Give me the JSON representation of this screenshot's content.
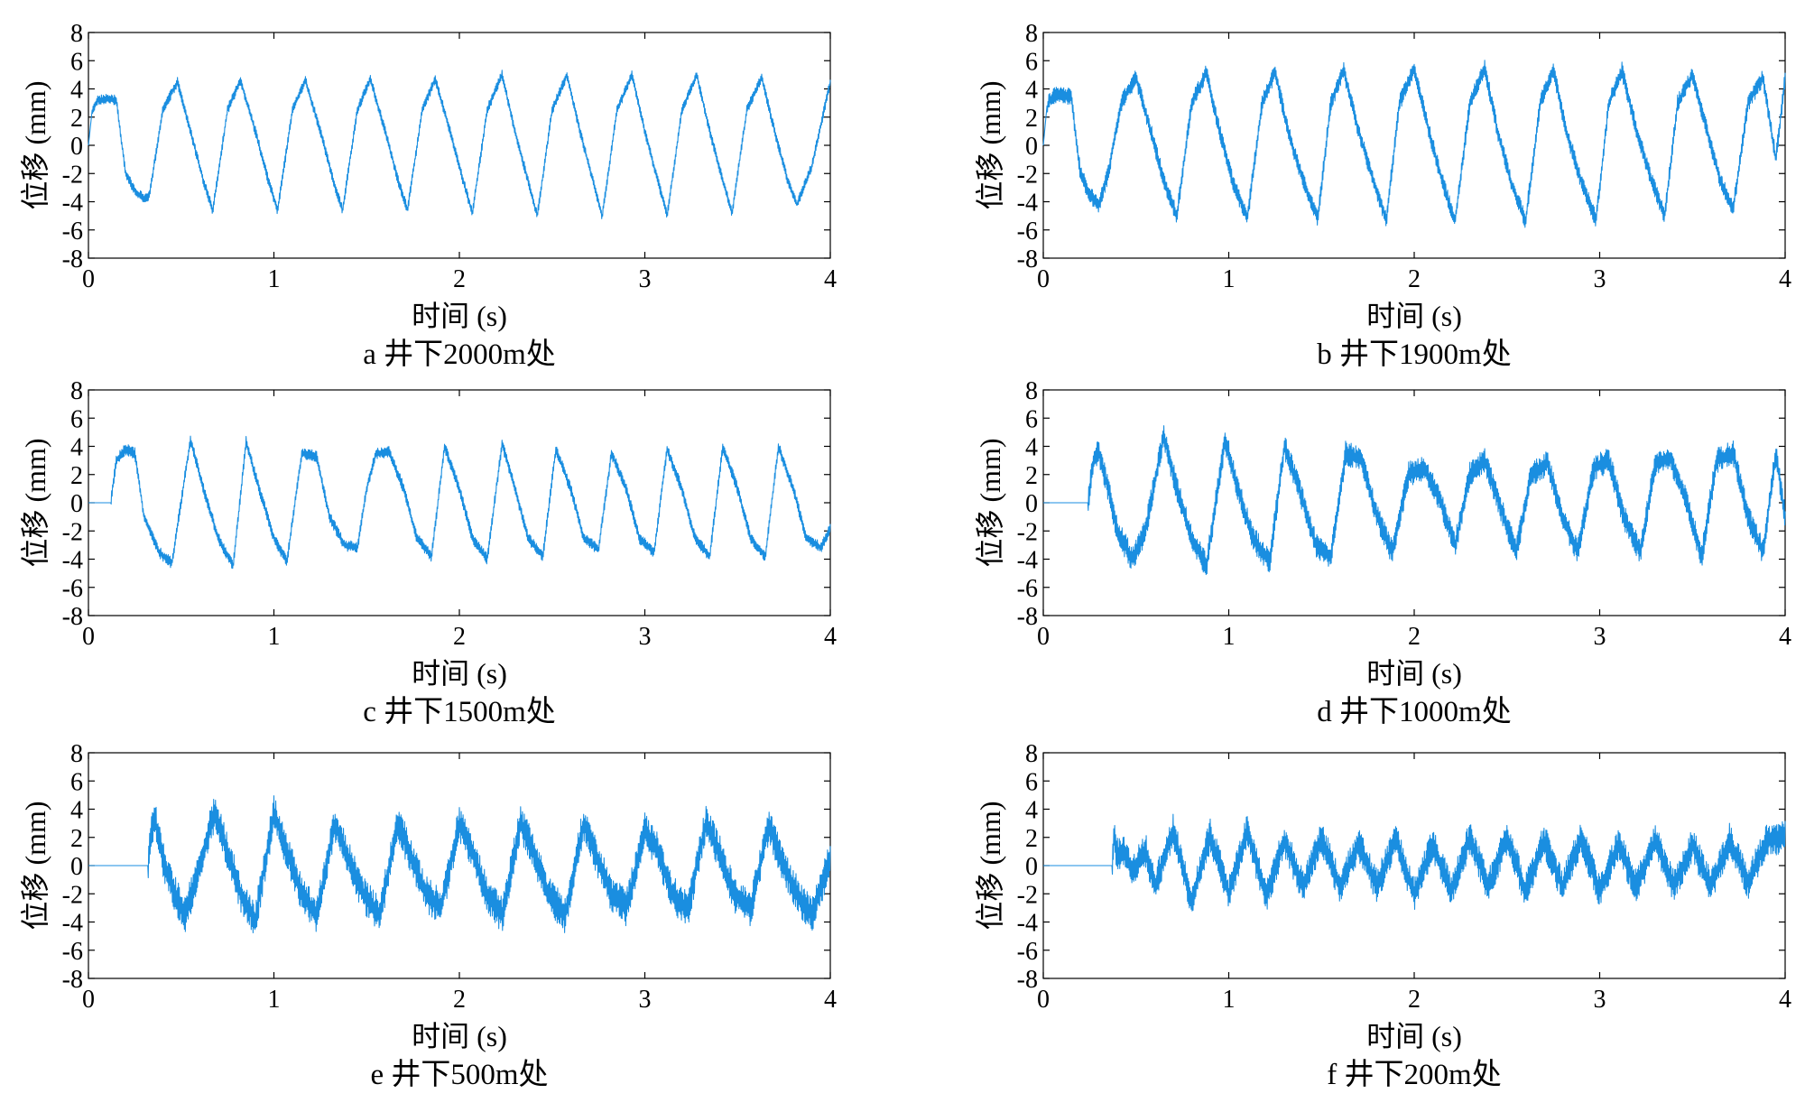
{
  "figure": {
    "line_color": "#1a8ee0"
  },
  "chart_data": [
    {
      "type": "line",
      "panel": "a",
      "caption": "a 井下2000m处",
      "xlabel": "时间 (s)",
      "ylabel": "位移 (mm)",
      "xlim": [
        0,
        4
      ],
      "ylim": [
        -8,
        8
      ],
      "xticks": [
        0,
        1,
        2,
        3,
        4
      ],
      "yticks": [
        -8,
        -6,
        -4,
        -2,
        0,
        2,
        4,
        6,
        8
      ],
      "grid": false,
      "series": [
        {
          "color": "#1a8ee0",
          "x": [
            0,
            0.02,
            0.05,
            0.1,
            0.15,
            0.2,
            0.25,
            0.3,
            0.33,
            0.4,
            0.48,
            0.55,
            0.62,
            0.67,
            0.75,
            0.82,
            0.9,
            0.97,
            1.02,
            1.1,
            1.17,
            1.25,
            1.32,
            1.37,
            1.45,
            1.52,
            1.6,
            1.67,
            1.72,
            1.8,
            1.87,
            1.95,
            2.02,
            2.07,
            2.15,
            2.23,
            2.3,
            2.37,
            2.42,
            2.5,
            2.58,
            2.65,
            2.72,
            2.77,
            2.85,
            2.93,
            3.0,
            3.07,
            3.12,
            3.2,
            3.28,
            3.35,
            3.42,
            3.47,
            3.55,
            3.63,
            3.7,
            3.77,
            3.82,
            3.9,
            4.0
          ],
          "y": [
            0,
            2.5,
            3.2,
            3.3,
            3.2,
            -2.0,
            -3.2,
            -3.8,
            -3.5,
            2.5,
            4.5,
            1.0,
            -2.5,
            -4.6,
            2.5,
            4.6,
            1.0,
            -2.5,
            -4.6,
            2.5,
            4.6,
            1.0,
            -2.5,
            -4.6,
            2.5,
            4.7,
            1.0,
            -2.5,
            -4.6,
            2.5,
            4.7,
            1.0,
            -2.5,
            -4.8,
            2.5,
            5.0,
            1.0,
            -2.5,
            -5.0,
            2.5,
            5.0,
            1.0,
            -2.5,
            -5.0,
            2.5,
            5.0,
            1.0,
            -2.5,
            -5.0,
            2.5,
            5.0,
            1.0,
            -2.5,
            -4.8,
            2.5,
            4.8,
            1.0,
            -2.5,
            -4.2,
            -1.5,
            4.5
          ]
        }
      ]
    },
    {
      "type": "line",
      "panel": "b",
      "caption": "b 井下1900m处",
      "xlabel": "时间 (s)",
      "ylabel": "位移 (mm)",
      "xlim": [
        0,
        4
      ],
      "ylim": [
        -8,
        8
      ],
      "xticks": [
        0,
        1,
        2,
        3,
        4
      ],
      "yticks": [
        -8,
        -6,
        -4,
        -2,
        0,
        2,
        4,
        6,
        8
      ],
      "grid": false,
      "series": [
        {
          "color": "#1a8ee0",
          "x": [
            0,
            0.02,
            0.05,
            0.1,
            0.15,
            0.2,
            0.25,
            0.3,
            0.35,
            0.42,
            0.5,
            0.58,
            0.65,
            0.72,
            0.8,
            0.88,
            0.95,
            1.02,
            1.1,
            1.18,
            1.25,
            1.32,
            1.4,
            1.48,
            1.55,
            1.62,
            1.7,
            1.78,
            1.85,
            1.92,
            2.0,
            2.08,
            2.15,
            2.22,
            2.3,
            2.38,
            2.45,
            2.52,
            2.6,
            2.68,
            2.75,
            2.82,
            2.9,
            2.98,
            3.05,
            3.12,
            3.2,
            3.28,
            3.35,
            3.42,
            3.5,
            3.58,
            3.65,
            3.72,
            3.8,
            3.88,
            3.95,
            4.0
          ],
          "y": [
            0,
            2.8,
            3.5,
            3.6,
            3.4,
            -2.0,
            -3.5,
            -4.2,
            -2.0,
            3.0,
            4.8,
            1.0,
            -2.5,
            -5.0,
            3.0,
            5.2,
            1.0,
            -2.5,
            -5.2,
            3.0,
            5.2,
            1.0,
            -2.5,
            -5.2,
            3.0,
            5.3,
            1.0,
            -2.5,
            -5.3,
            3.0,
            5.4,
            1.0,
            -2.5,
            -5.4,
            3.0,
            5.5,
            1.0,
            -2.5,
            -5.4,
            3.0,
            5.4,
            1.0,
            -2.5,
            -5.3,
            3.0,
            5.3,
            1.0,
            -2.5,
            -5.0,
            3.0,
            5.0,
            1.0,
            -2.5,
            -4.5,
            3.0,
            4.8,
            -1.0,
            4.8
          ]
        }
      ]
    },
    {
      "type": "line",
      "panel": "c",
      "caption": "c 井下1500m处",
      "xlabel": "时间 (s)",
      "ylabel": "位移 (mm)",
      "xlim": [
        0,
        4
      ],
      "ylim": [
        -8,
        8
      ],
      "xticks": [
        0,
        1,
        2,
        3,
        4
      ],
      "yticks": [
        -8,
        -6,
        -4,
        -2,
        0,
        2,
        4,
        6,
        8
      ],
      "grid": false,
      "series": [
        {
          "color": "#1a8ee0",
          "x": [
            0,
            0.12,
            0.15,
            0.2,
            0.25,
            0.3,
            0.38,
            0.45,
            0.55,
            0.62,
            0.7,
            0.78,
            0.85,
            0.92,
            1.0,
            1.07,
            1.15,
            1.23,
            1.3,
            1.38,
            1.45,
            1.5,
            1.55,
            1.62,
            1.7,
            1.77,
            1.85,
            1.92,
            2.0,
            2.07,
            2.15,
            2.23,
            2.3,
            2.37,
            2.45,
            2.52,
            2.6,
            2.67,
            2.75,
            2.82,
            2.9,
            2.97,
            3.05,
            3.12,
            3.2,
            3.27,
            3.35,
            3.42,
            3.5,
            3.57,
            3.65,
            3.72,
            3.8,
            3.87,
            3.95,
            4.0
          ],
          "y": [
            0,
            0,
            3.0,
            3.8,
            3.5,
            -1.0,
            -3.5,
            -4.3,
            4.5,
            1.0,
            -2.5,
            -4.5,
            4.3,
            1.0,
            -2.5,
            -4.2,
            3.5,
            3.3,
            -1.0,
            -3.0,
            -3.2,
            1.0,
            3.5,
            3.6,
            1.0,
            -2.5,
            -3.8,
            4.0,
            1.0,
            -2.5,
            -4.0,
            4.2,
            1.0,
            -2.5,
            -3.8,
            3.8,
            1.0,
            -2.5,
            -3.3,
            3.5,
            1.0,
            -2.5,
            -3.5,
            3.8,
            1.0,
            -2.5,
            -3.8,
            4.0,
            1.0,
            -2.5,
            -3.8,
            4.0,
            1.0,
            -2.5,
            -3.2,
            -1.8
          ]
        }
      ]
    },
    {
      "type": "line",
      "panel": "d",
      "caption": "d 井下1000m处",
      "xlabel": "时间 (s)",
      "ylabel": "位移 (mm)",
      "xlim": [
        0,
        4
      ],
      "ylim": [
        -8,
        8
      ],
      "xticks": [
        0,
        1,
        2,
        3,
        4
      ],
      "yticks": [
        -8,
        -6,
        -4,
        -2,
        0,
        2,
        4,
        6,
        8
      ],
      "grid": false,
      "series": [
        {
          "color": "#1a8ee0",
          "x": [
            0,
            0.24,
            0.27,
            0.3,
            0.35,
            0.4,
            0.48,
            0.55,
            0.65,
            0.72,
            0.8,
            0.88,
            0.98,
            1.05,
            1.13,
            1.22,
            1.3,
            1.38,
            1.47,
            1.55,
            1.63,
            1.72,
            1.8,
            1.88,
            1.97,
            2.05,
            2.13,
            2.22,
            2.3,
            2.38,
            2.47,
            2.55,
            2.63,
            2.72,
            2.8,
            2.88,
            2.97,
            3.05,
            3.13,
            3.22,
            3.3,
            3.38,
            3.47,
            3.55,
            3.63,
            3.72,
            3.8,
            3.88,
            3.95,
            4.0
          ],
          "y": [
            0,
            0,
            3.0,
            3.6,
            1.0,
            -2.0,
            -4.0,
            -2.0,
            4.8,
            1.0,
            -2.5,
            -4.5,
            4.5,
            1.0,
            -2.5,
            -4.2,
            4.0,
            1.0,
            -3.0,
            -3.8,
            3.5,
            3.0,
            -1.0,
            -3.5,
            2.0,
            2.5,
            0.5,
            -3.0,
            2.0,
            3.0,
            -0.5,
            -3.5,
            2.0,
            2.8,
            -1.0,
            -3.5,
            2.5,
            3.0,
            -1.0,
            -3.5,
            2.8,
            3.2,
            0.0,
            -3.8,
            3.0,
            3.5,
            -1.0,
            -3.5,
            3.5,
            -1.0
          ]
        }
      ]
    },
    {
      "type": "line",
      "panel": "e",
      "caption": "e 井下500m处",
      "xlabel": "时间 (s)",
      "ylabel": "位移 (mm)",
      "xlim": [
        0,
        4
      ],
      "ylim": [
        -8,
        8
      ],
      "xticks": [
        0,
        1,
        2,
        3,
        4
      ],
      "yticks": [
        -8,
        -6,
        -4,
        -2,
        0,
        2,
        4,
        6,
        8
      ],
      "grid": false,
      "series": [
        {
          "color": "#1a8ee0",
          "x": [
            0,
            0.32,
            0.34,
            0.36,
            0.4,
            0.45,
            0.52,
            0.58,
            0.68,
            0.75,
            0.82,
            0.9,
            1.0,
            1.07,
            1.15,
            1.23,
            1.33,
            1.4,
            1.48,
            1.57,
            1.67,
            1.73,
            1.82,
            1.9,
            2.0,
            2.07,
            2.15,
            2.23,
            2.33,
            2.4,
            2.48,
            2.57,
            2.67,
            2.73,
            2.82,
            2.9,
            3.0,
            3.07,
            3.15,
            3.23,
            3.33,
            3.4,
            3.48,
            3.57,
            3.67,
            3.73,
            3.82,
            3.9,
            4.0
          ],
          "y": [
            0,
            0,
            2.5,
            3.2,
            0.5,
            -1.5,
            -3.5,
            -1.0,
            3.8,
            1.0,
            -2.0,
            -3.8,
            3.8,
            1.0,
            -2.0,
            -3.5,
            3.0,
            0.5,
            -2.0,
            -3.5,
            3.0,
            1.0,
            -2.0,
            -3.0,
            3.0,
            1.0,
            -2.0,
            -3.5,
            3.0,
            1.0,
            -2.0,
            -3.5,
            3.0,
            1.0,
            -2.0,
            -3.0,
            2.5,
            1.0,
            -2.0,
            -3.2,
            3.0,
            1.0,
            -2.0,
            -3.0,
            3.0,
            0.5,
            -2.0,
            -3.5,
            0.5
          ]
        }
      ]
    },
    {
      "type": "line",
      "panel": "f",
      "caption": "f 井下200m处",
      "xlabel": "时间 (s)",
      "ylabel": "位移 (mm)",
      "xlim": [
        0,
        4
      ],
      "ylim": [
        -8,
        8
      ],
      "xticks": [
        0,
        1,
        2,
        3,
        4
      ],
      "yticks": [
        -8,
        -6,
        -4,
        -2,
        0,
        2,
        4,
        6,
        8
      ],
      "grid": false,
      "series": [
        {
          "color": "#1a8ee0",
          "x": [
            0,
            0.37,
            0.38,
            0.4,
            0.43,
            0.48,
            0.55,
            0.6,
            0.7,
            0.8,
            0.9,
            1.0,
            1.1,
            1.2,
            1.3,
            1.4,
            1.5,
            1.6,
            1.7,
            1.8,
            1.9,
            2.0,
            2.1,
            2.2,
            2.3,
            2.4,
            2.5,
            2.6,
            2.7,
            2.8,
            2.9,
            3.0,
            3.1,
            3.2,
            3.3,
            3.4,
            3.5,
            3.6,
            3.7,
            3.8,
            3.9,
            4.0
          ],
          "y": [
            0,
            0,
            2.0,
            0.8,
            1.2,
            -0.5,
            1.2,
            -1.5,
            2.5,
            -2.5,
            2.2,
            -2.0,
            2.5,
            -2.2,
            1.8,
            -1.5,
            2.0,
            -1.5,
            1.5,
            -1.5,
            1.8,
            -2.0,
            1.5,
            -1.8,
            2.0,
            -1.5,
            2.0,
            -1.8,
            1.8,
            -1.5,
            2.0,
            -1.8,
            1.5,
            -1.5,
            1.8,
            -1.5,
            1.5,
            -1.5,
            1.8,
            -1.2,
            1.8,
            2.0
          ]
        }
      ]
    }
  ]
}
